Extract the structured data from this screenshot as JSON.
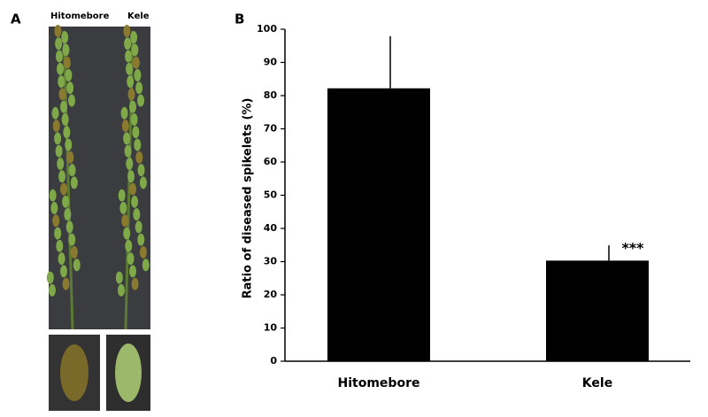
{
  "panel_a": {
    "label": "A",
    "photo_labels": [
      "Hitomebore",
      "Kele"
    ]
  },
  "chart_data": {
    "type": "bar",
    "panel_label": "B",
    "y_label": "Ratio of diseased spikelets  (%)",
    "categories": [
      "Hitomebore",
      "Kele"
    ],
    "values": [
      82.2,
      30.3
    ],
    "errors": [
      15.7,
      4.6
    ],
    "color": "#000000",
    "annotations": [
      {
        "category": 1,
        "text": "***"
      }
    ],
    "ylim": [
      0,
      100
    ],
    "yticks": [
      0,
      10,
      20,
      30,
      40,
      50,
      60,
      70,
      80,
      90,
      100
    ],
    "grid": false
  }
}
